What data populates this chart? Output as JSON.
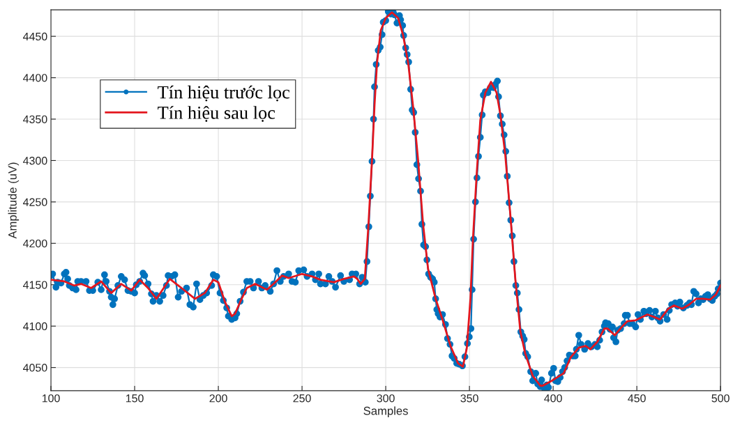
{
  "chart_data": {
    "type": "line",
    "xlabel": "Samples",
    "ylabel": "Amplitude (uV)",
    "xlim": [
      100,
      500
    ],
    "ylim": [
      4022,
      4482
    ],
    "xticks": [
      100,
      150,
      200,
      250,
      300,
      350,
      400,
      450,
      500
    ],
    "yticks": [
      4050,
      4100,
      4150,
      4200,
      4250,
      4300,
      4350,
      4400,
      4450
    ],
    "grid": true,
    "legend": "top left",
    "series": [
      {
        "name": "Tín hiệu trước lọc",
        "color": "#0072bd",
        "marker": "circle",
        "x": [
          100,
          101,
          103,
          104,
          106,
          108,
          109,
          110,
          111,
          113,
          115,
          116,
          118,
          121,
          123,
          125,
          128,
          130,
          132,
          133,
          135,
          136,
          137,
          138,
          140,
          142,
          144,
          146,
          148,
          150,
          151,
          153,
          155,
          156,
          158,
          160,
          161,
          163,
          165,
          167,
          169,
          170,
          172,
          174,
          176,
          178,
          181,
          183,
          185,
          187,
          189,
          191,
          193,
          196,
          197,
          199,
          201,
          203,
          205,
          206,
          208,
          210,
          211,
          213,
          215,
          217,
          219,
          221,
          224,
          226,
          228,
          231,
          233,
          235,
          237,
          239,
          242,
          244,
          246,
          248,
          251,
          253,
          256,
          258,
          260,
          261,
          264,
          266,
          268,
          270,
          273,
          275,
          278.4,
          279.9,
          282.1,
          284.4,
          285.9,
          287.8,
          288.8,
          289.9,
          290.8,
          291.8,
          292.7,
          293.3,
          294.3,
          295.5,
          296.7,
          297.8,
          298.5,
          300,
          301.5,
          303,
          304.5,
          305.2,
          306.7,
          308.2,
          308.9,
          310.1,
          310.7,
          311.9,
          312.8,
          313.7,
          314.9,
          315.8,
          316.7,
          317.6,
          318.6,
          319.6,
          320.8,
          321.6,
          322.6,
          323.8,
          324.6,
          325.6,
          326.8,
          328,
          329,
          329.8,
          330.5,
          331.3,
          332.4,
          333.9,
          335.7,
          336.9,
          338.4,
          339.6,
          340.9,
          342.4,
          343.9,
          345.8,
          347.3,
          348.8,
          349.9,
          350.9,
          351.6,
          352.5,
          353.6,
          354.5,
          355.4,
          356.5,
          357.6,
          358.3,
          359.5,
          361,
          362.5,
          364.4,
          365.5,
          366.7,
          367.4,
          368.5,
          369.6,
          370.7,
          371.7,
          372.6,
          373.7,
          374.7,
          375.6,
          376.6,
          377.7,
          378.6,
          379.6,
          380.7,
          381.8,
          382.7,
          383.6,
          384.8,
          386.6,
          387.8,
          389.6,
          390.8,
          392.3,
          393.1,
          394.4,
          395.1,
          396.2,
          397.2,
          399,
          400.3,
          401.4,
          402.8,
          404.2,
          405.6,
          406.9,
          408.3,
          409.7,
          411.8,
          413.2,
          413.9,
          415.3,
          416.7,
          418.8,
          420.8,
          422.9,
          425,
          426.4,
          427.8,
          429.2,
          430.6,
          431.3,
          432.9,
          434,
          435.4,
          436.1,
          437.5,
          438.5,
          440.3,
          442.4,
          443.1,
          444.4,
          445.8,
          447.2,
          449.3,
          450.7,
          452.1,
          454.2,
          455.6,
          457.6,
          459,
          461.1,
          462.5,
          463.9,
          466,
          468.1,
          469.4,
          470.8,
          472.9,
          474.3,
          475.7,
          477.8,
          479.9,
          481.5,
          482.6,
          484,
          485.4,
          486.8,
          488.2,
          489.6,
          491,
          492.4,
          493.8,
          495.1,
          496.5,
          497.9,
          498.6,
          500
        ],
        "values": [
          4161,
          4163,
          4147,
          4153,
          4152,
          4163,
          4165,
          4157,
          4149,
          4146,
          4144,
          4154,
          4154,
          4154,
          4143,
          4143,
          4153,
          4144,
          4162,
          4154,
          4142,
          4135,
          4126,
          4133,
          4149,
          4160,
          4156,
          4143,
          4142,
          4140,
          4150,
          4154,
          4164,
          4161,
          4151,
          4139,
          4130,
          4137,
          4130,
          4137,
          4149,
          4161,
          4160,
          4162,
          4135,
          4142,
          4146,
          4126,
          4123,
          4151,
          4132,
          4137,
          4140,
          4149,
          4162,
          4160,
          4140,
          4131,
          4122,
          4112,
          4108,
          4110,
          4115,
          4130,
          4141,
          4154,
          4154,
          4146,
          4154,
          4146,
          4149,
          4142,
          4151,
          4167,
          4154,
          4160,
          4163,
          4154,
          4153,
          4167,
          4168,
          4160,
          4163,
          4156,
          4163,
          4151,
          4151,
          4160,
          4154,
          4147,
          4161,
          4154,
          4156,
          4163,
          4163,
          4151,
          4159,
          4153,
          4178,
          4220,
          4257,
          4299,
          4350,
          4389,
          4416,
          4433,
          4437,
          4452,
          4467,
          4469,
          4480,
          4477,
          4479,
          4476,
          4466,
          4475,
          4470,
          4463,
          4451,
          4436,
          4428,
          4419,
          4386,
          4361,
          4358,
          4334,
          4295,
          4278,
          4263,
          4223,
          4198,
          4196,
          4180,
          4163,
          4159,
          4157,
          4153,
          4133,
          4120,
          4115,
          4111,
          4114,
          4102,
          4085,
          4078,
          4064,
          4061,
          4055,
          4054,
          4052,
          4063,
          4079,
          4087,
          4097,
          4144,
          4205,
          4250,
          4279,
          4305,
          4328,
          4355,
          4379,
          4383,
          4382,
          4388,
          4388,
          4392,
          4396,
          4377,
          4354,
          4344,
          4331,
          4311,
          4281,
          4249,
          4228,
          4209,
          4178,
          4149,
          4140,
          4120,
          4093,
          4088,
          4084,
          4067,
          4063,
          4045,
          4034,
          4043,
          4030,
          4027,
          4035,
          4026,
          4023,
          4029,
          4026,
          4043,
          4049,
          4034,
          4033,
          4038,
          4045,
          4050,
          4058,
          4065,
          4064,
          4064,
          4072,
          4089,
          4078,
          4072,
          4079,
          4075,
          4078,
          4075,
          4083,
          4093,
          4100,
          4104,
          4103,
          4096,
          4099,
          4086,
          4081,
          4095,
          4097,
          4103,
          4113,
          4113,
          4103,
          4103,
          4099,
          4114,
          4108,
          4118,
          4115,
          4119,
          4111,
          4118,
          4110,
          4106,
          4114,
          4108,
          4119,
          4126,
          4128,
          4124,
          4129,
          4122,
          4125,
          4128,
          4126,
          4142,
          4139,
          4128,
          4133,
          4132,
          4136,
          4138,
          4133,
          4131,
          4136,
          4139,
          4145,
          4152
        ]
      },
      {
        "name": "Tín hiệu sau lọc",
        "color": "#e3161e",
        "x": [
          100,
          108,
          114,
          118,
          124,
          130,
          136,
          142,
          148,
          153,
          158,
          163,
          171,
          178,
          186,
          192,
          197,
          200,
          204,
          208,
          210,
          213,
          217,
          222,
          229,
          233,
          238,
          242,
          250,
          256,
          261,
          269,
          275,
          281,
          283,
          285,
          287.5,
          289.6,
          291.8,
          293.3,
          294.8,
          297,
          300,
          303.7,
          307.4,
          310.4,
          313.4,
          316.4,
          319.3,
          322.3,
          325.3,
          329.8,
          334.2,
          338.7,
          343.2,
          346.1,
          348.4,
          350.6,
          352.1,
          354.3,
          356.5,
          359.5,
          362.9,
          366.2,
          368.5,
          371.4,
          374.4,
          377.4,
          380.4,
          383.3,
          387.8,
          392.3,
          393.8,
          400,
          406.3,
          410.4,
          415.3,
          419.4,
          422.2,
          426.4,
          430.6,
          432.6,
          436.8,
          441,
          444.4,
          449.3,
          456.3,
          460.4,
          463.9,
          468.8,
          472.2,
          477.1,
          481.3,
          485.4,
          489.6,
          493.8,
          497.2,
          500
        ],
        "values": [
          4156,
          4154,
          4149,
          4151,
          4146,
          4154,
          4140,
          4151,
          4143,
          4156,
          4146,
          4133,
          4157,
          4146,
          4133,
          4140,
          4156,
          4153,
          4129,
          4112,
          4115,
          4129,
          4146,
          4151,
          4144,
          4151,
          4161,
          4158,
          4163,
          4160,
          4156,
          4153,
          4157,
          4160,
          4157,
          4151,
          4157,
          4220,
          4301,
          4367,
          4418,
          4457,
          4472,
          4479,
          4472,
          4451,
          4418,
          4364,
          4301,
          4223,
          4169,
          4133,
          4106,
          4076,
          4055,
          4051,
          4073,
          4133,
          4205,
          4283,
          4349,
          4382,
          4395,
          4382,
          4355,
          4307,
          4235,
          4157,
          4094,
          4067,
          4040,
          4028,
          4028,
          4035,
          4043,
          4062,
          4074,
          4076,
          4072,
          4081,
          4097,
          4097,
          4089,
          4099,
          4106,
          4107,
          4114,
          4111,
          4108,
          4121,
          4125,
          4121,
          4126,
          4133,
          4133,
          4132,
          4138,
          4149
        ]
      }
    ]
  }
}
